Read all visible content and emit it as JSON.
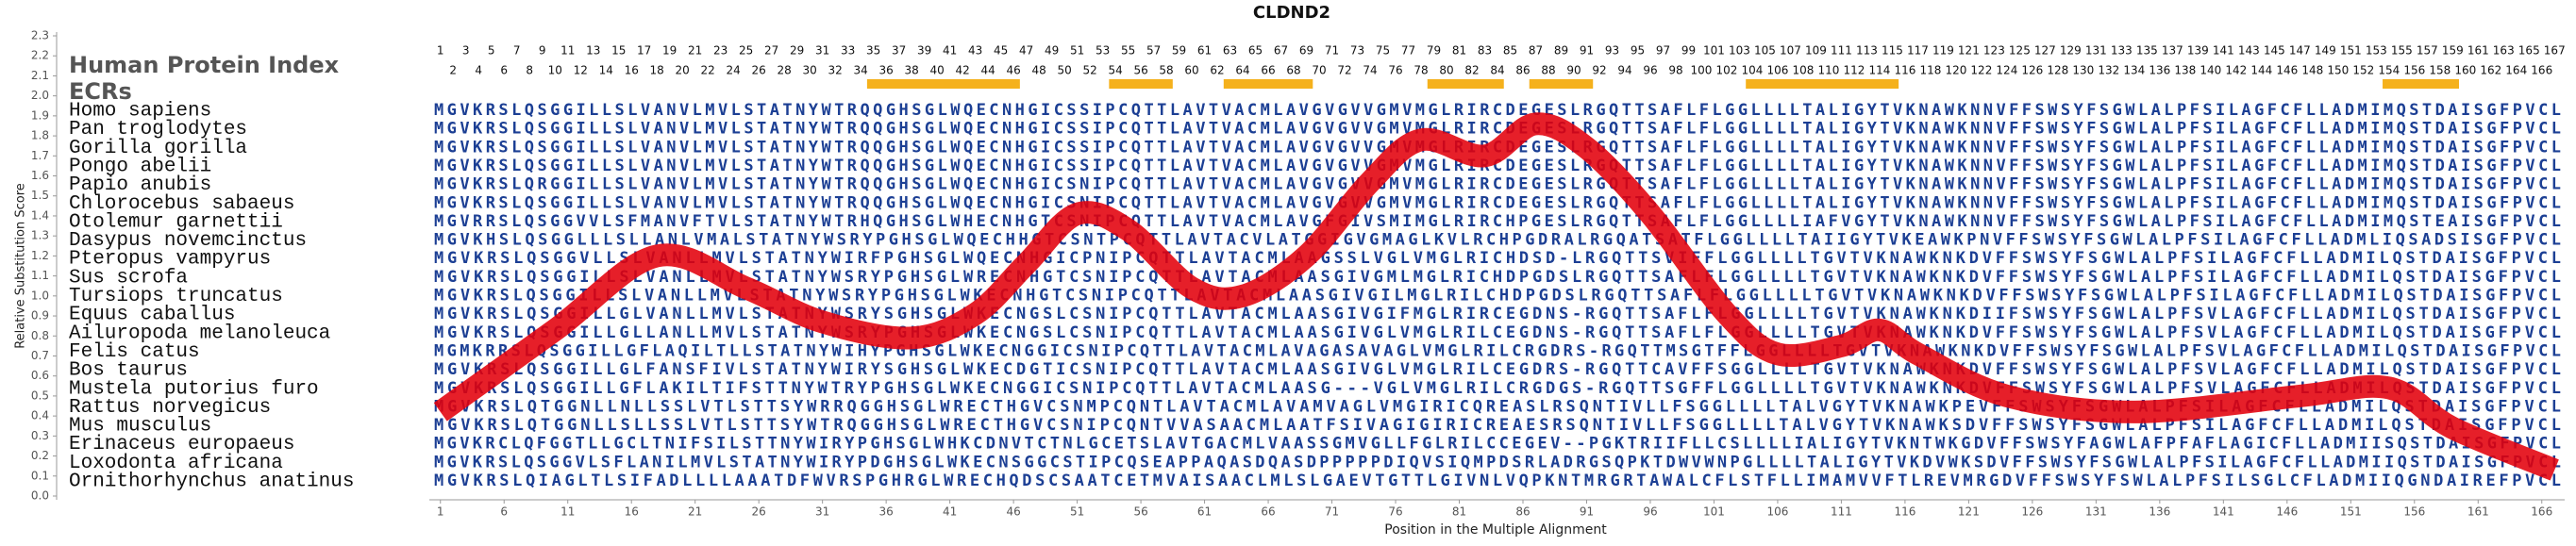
{
  "chart_data": {
    "type": "line",
    "title": "CLDND2",
    "x_label": "Position in the Multiple Alignment",
    "y_label": "Relative Substitution Score",
    "xlim": [
      0.5,
      167.5
    ],
    "ylim": [
      0,
      2.3
    ],
    "yticks": [
      {
        "value": 0,
        "label": "0.0"
      },
      0.1,
      0.2,
      0.3,
      0.4,
      0.5,
      0.6,
      0.7,
      0.8,
      0.9,
      {
        "value": 1,
        "label": "1.0"
      },
      1.1,
      1.2,
      1.3,
      1.4,
      1.5,
      1.6,
      1.7,
      1.8,
      1.9,
      {
        "value": 2,
        "label": "2.0"
      },
      2.1,
      2.2,
      2.3
    ],
    "xticks": [
      1,
      6,
      11,
      16,
      21,
      26,
      31,
      36,
      41,
      46,
      51,
      56,
      61,
      66,
      71,
      76,
      81,
      86,
      91,
      96,
      101,
      106,
      111,
      116,
      121,
      126,
      131,
      136,
      141,
      146,
      151,
      156,
      161,
      166
    ],
    "series": [
      {
        "color": "#e3000b",
        "x": [
          1,
          10,
          18,
          25,
          31,
          38,
          43,
          47,
          51,
          55,
          60,
          64,
          69,
          74,
          78,
          83,
          87,
          91,
          96,
          102,
          106,
          111,
          114,
          117,
          124,
          134,
          147,
          154,
          159,
          167
        ],
        "values": [
          0.42,
          0.83,
          1.2,
          1.04,
          0.87,
          0.79,
          0.91,
          1.16,
          1.41,
          1.33,
          1.04,
          1.0,
          1.2,
          1.57,
          1.78,
          1.7,
          1.86,
          1.74,
          1.41,
          0.91,
          0.71,
          0.75,
          0.83,
          0.71,
          0.5,
          0.42,
          0.5,
          0.54,
          0.34,
          0.13
        ]
      }
    ],
    "protein_index_label": "Human Protein Index",
    "protein_index": [
      1,
      2,
      3,
      4,
      5,
      6,
      7,
      8,
      9,
      10,
      11,
      12,
      13,
      14,
      15,
      16,
      17,
      18,
      19,
      20,
      21,
      22,
      23,
      24,
      25,
      26,
      27,
      28,
      29,
      30,
      31,
      32,
      33,
      34,
      35,
      36,
      37,
      38,
      39,
      40,
      41,
      42,
      43,
      44,
      45,
      46,
      47,
      48,
      49,
      50,
      51,
      52,
      53,
      54,
      55,
      56,
      57,
      58,
      59,
      60,
      61,
      62,
      63,
      64,
      65,
      66,
      67,
      68,
      69,
      70,
      71,
      72,
      73,
      74,
      75,
      76,
      77,
      78,
      79,
      80,
      81,
      82,
      83,
      84,
      85,
      86,
      87,
      88,
      89,
      90,
      91,
      92,
      93,
      94,
      95,
      96,
      97,
      98,
      99,
      100,
      101,
      102,
      103,
      104,
      105,
      106,
      107,
      108,
      109,
      110,
      111,
      112,
      113,
      114,
      115,
      116,
      117,
      118,
      119,
      120,
      121,
      122,
      123,
      124,
      125,
      126,
      127,
      128,
      129,
      130,
      131,
      132,
      133,
      134,
      135,
      136,
      137,
      138,
      139,
      140,
      141,
      142,
      143,
      144,
      145,
      146,
      147,
      148,
      149,
      150,
      151,
      152,
      153,
      154,
      155,
      156,
      157,
      158,
      159,
      160,
      161,
      162,
      163,
      164,
      165,
      166,
      167
    ],
    "ecr_label": "ECRs",
    "ecr_color": "#f5b11c",
    "ecrs": [
      {
        "start": 35,
        "end": 46
      },
      {
        "start": 54,
        "end": 58
      },
      {
        "start": 63,
        "end": 69
      },
      {
        "start": 79,
        "end": 84
      },
      {
        "start": 87,
        "end": 91
      },
      {
        "start": 104,
        "end": 115
      },
      {
        "start": 154,
        "end": 159
      }
    ],
    "alignment": [
      {
        "species": "Homo sapiens",
        "sequence": "MGVKRSLQSGGILLSLVANVLMVLSTATNYWTRQQGHSGLWQECNHGICSSIPCQTTLAVTVACMLAVGVGVVGMVMGLRIRCDEGESLRGQTTSAFLFLGGLLLLTALIGYTVKNAWKNNVFFSWSYFSGWLALPFSILAGFCFLLADMIMQSTDAISGFPVCL"
      },
      {
        "species": "Pan troglodytes",
        "sequence": "MGVKRSLQSGGILLSLVANVLMVLSTATNYWTRQQGHSGLWQECNHGICSSIPCQTTLAVTVACMLAVGVGVVGMVMGLRIRCDEGESLRGQTTSAFLFLGGLLLLTALIGYTVKNAWKNNVFFSWSYFSGWLALPFSILAGFCFLLADMIMQSTDAISGFPVCL"
      },
      {
        "species": "Gorilla gorilla",
        "sequence": "MGVKRSLQSGGILLSLVANVLMVLSTATNYWTRQQGHSGLWQECNHGICSSIPCQTTLAVTVACMLAVGVGVVGMVMGLRIRCDEGESLRGQTTSAFLFLGGLLLLTALIGYTVKNAWKNNVFFSWSYFSGWLALPFSILAGFCFLLADMIMQSTDAISGFPVCL"
      },
      {
        "species": "Pongo abelii",
        "sequence": "MGVKRSLQSGGILLSLVANVLMVLSTATNYWTRQQGHSGLWQECNHGICSSIPCQTTLAVTVACMLAVGVGVVGMVMGLRIRCDEGESLRGQTTSAFLFLGGLLLLTALIGYTVKNAWKNNVFFSWSYFSGWLALPFSILAGFCFLLADMIMQSTDAISGFPVCL"
      },
      {
        "species": "Papio anubis",
        "sequence": "MGVKRSLQRGGILLSLVANVLMVLSTATNYWTRQQGHSGLWQECNHGICSNIPCQTTLAVTVACMLAVGVGVVGMVMGLRIRCDEGESLRGQTTSAFLFLGGLLLLTALIGYTVKNAWKNNVFFSWSYFSGWLALPFSILAGFCFLLADMIMQSTDAISGFPVCL"
      },
      {
        "species": "Chlorocebus sabaeus",
        "sequence": "MGVKRSLQSGGILLSLVANVLMVLSTATNYWTRQQGHSGLWQECNHGICSNIPCQTTLAVTVACMLAVGVGVVGMVMGLRIRCDEGESLRGQTTSAFLFLGGLLLLTALIGYTVKNAWKNNVFFSWSYFSGWLALPFSILAGFCFLLADMIMQSTDAISGFPVCL"
      },
      {
        "species": "Otolemur garnettii",
        "sequence": "MGVRRSLQSGGVVLSFMANVFTVLSTATNYWTRHQGHSGLWHECNHGTCSNIPCQTTLAVTVACMLAVGFGIVSMIMGLRIRCHPGESLRGQTTSAFLFLGGLLLLIAFVGYTVKNAWKNNVFFSWSYFSGWLALPFSILAGFCFLLADMIMQSTEAISGFPVCL"
      },
      {
        "species": "Dasypus novemcinctus",
        "sequence": "MGVKHSLQSGGLLLSLLANLVMALSTATNYWSRYPGHSGLWQECHHGTCSNTPCQTTLAVTACVLATGGIGVGMAGLKVLRCHPGDRALRGQATSATFLGGLLLLTAIIGYTVKEAWKPNVFFSWSYFSGWLALPFSILAGFCFLLADMLIQSADSISGFPVCL"
      },
      {
        "species": "Pteropus vampyrus",
        "sequence": "MGVKRSLQSGGVLLSLVANLLMVLSTATNYWIRFPGHSGLWQECNHGICPNIPCQTTLAVTACMLAAGSSLVGLVMGLRICHDSD-LRGQTTSVIFFLGGLLLLTGVTVKNAWKNKDVFFSWSYFSGWLALPFSILAGFCFLLADMILQSTDAISGFPVCL"
      },
      {
        "species": "Sus scrofa",
        "sequence": "MGVKRSLQSGGILLSLVANLLMVLSTATNYWSRYPGHSGLWRECNHGTCSNIPCQTTLAVTACMLAASGIVGMLMGLRICHDPGDSLRGQTTSAFLFLGGLLLLTGVTVKNAWKNKDVFFSWSYFSGWLALPFSILAGFCFLLADMILQSTDAISGFPVCL"
      },
      {
        "species": "Tursiops truncatus",
        "sequence": "MGVKRSLQSGGILLSLVANLLMVLSTATNYWSRYPGHSGLWKECNHGTCSNIPCQTTLAVTACMLAASGIVGILMGLRILCHDPGDSLRGQTTSAFLFLGGLLLLTGVTVKNAWKNKDVFFSWSYFSGWLALPFSILAGFCFLLADMILQSTDAISGFPVCL"
      },
      {
        "species": "Equus caballus",
        "sequence": "MGVKRSLQSGGILLGLVANLLMVLSTATNYWSRYSGHSGLWKECNGSLCSNIPCQTTLAVTACMLAASGIVGIFMGLRIRCEGDNS-RGQTTSAFLFLGGLLLLTGVTVKNAWKNKDIIFSWSYFSGWLALPFSVLAGFCFLLADMILQSTDAISGFPVCL"
      },
      {
        "species": "Ailuropoda melanoleuca",
        "sequence": "MGVKRSLQSGGILLGLLANLLMVLSTATNYWSRYPGHSGLWKECNGSLCSNIPCQTTLAVTACMLAASGIVGLVMGLRILCEGDNS-RGQTTSAFLFLGGLLLLTGVTVKNAWKNKDVFFSWSYFSGWLALPFSVLAGFCFLLADMILQSTDAISGFPVCL"
      },
      {
        "species": "Felis catus",
        "sequence": "MGMKRRSLQSGGILLGFLAQILTLLSTATNYWIHYPGHSGLWKECNGGICSNIPCQTTLAVTACMLAVAGASAVAGLVMGLRILCRGDRS-RGQTTMSGTFFLGGLLLLTGVTVKNAWKNKDVFFSWSYFSGWLALPFSVLAGFCFLLADMILQSTDAISGFPVCL"
      },
      {
        "species": "Bos taurus",
        "sequence": "MGVKRSLQSGGILLGLFANSFIVLSTATNYWIRYSGHSGLWKECDGTICSNIPCQTTLAVTACMLAASGIVGLVMGLRILCEGDRS-RGQTTCAVFFSGGLLLLTGVTVKNAWKNKDVFFSWSYFSGWLALPFSVLAGFCFLLADMILQSTDAISGFPVCL"
      },
      {
        "species": "Mustela putorius furo",
        "sequence": "MGVKRSLQSGGILLGFLAKILTIFSTTNYWTRYPGHSGLWKECNGGICSNIPCQTTLAVTACMLAASG---VGLVMGLRILCRGDGS-RGQTTSGFFLGGLLLLTGVTVKNAWKNKDVFFSWSYFSGWLALPFSVLAGFCFLLADMILQSTDAISGFPVCL"
      },
      {
        "species": "Rattus norvegicus",
        "sequence": "MGVKRSLQTGGNLLNLLSSLVTLSTTSYWRRQGGHSGLWRECTHGVCSNMPCQNTLAVTACMLAVAMVAGLVMGIRICQREASLRSQNTIVLLFSGGLLLLTALVGYTVKNAWKPEVFFSWSYFSGWLALPFSILAGFCFLLADMILQSTDAISGFPVCL"
      },
      {
        "species": "Mus musculus",
        "sequence": "MGVKRSLQTGGNLLSLLSSLVTLSTTSYWTRQGGHSGLWRECTHGVCSNIPCQNTVVASAACMLAATFSIVAGIGIRICREAESRSQNTIVLLFSGGLLLLTALVGYTVKNAWKSDVFFSWSYFSGWLALPFSILAGFCFLLADMILQSTDAISGFPVCL"
      },
      {
        "species": "Erinaceus europaeus",
        "sequence": "MGVKRCLQFGGTLLGCLTNIFSILSTTNYWIRYPGHSGLWHKCDNVTCTNLGCETSLAVTGACMLVAASSGMVGLLFGLRILCCEGEV--PGKTRIIFLLCSLLLLIALIGYTVKNTWKGDVFFSWSYFAGWLAFPFAFLAGICFLLADMIISQSTDAISGFPVCL"
      },
      {
        "species": "Loxodonta africana",
        "sequence": "MGVKRSLQSGGVLSFLANILMVLSTATNYWIRYPDGHSGLWKECNSGGCSTIPCQSEAPPAQASDQASDPPPPPDIQVSIQMPDSRLADRGSQPKTDWVWNPGLLLLTALIGYTVKDVWKSDVFFSWSYFSGWLALPFSILAGFCFLLADMIIQSTDAISGFPVCL"
      },
      {
        "species": "Ornithorhynchus anatinus",
        "sequence": "MGVKRSLQIAGLTLSIFADLLLLAAATDFWVRSPGHRGLWRECHQDSCSAATCETMVAISAACLMLSLGAEVTGTTLGIVNLVQPKNTMRGRTAWALCFLSTFLLIMAMVVFTLREVMRGDVFFSWSYFSWLALPFSILSGLCFLADMIIQGNDAIREFPVCL"
      }
    ]
  }
}
